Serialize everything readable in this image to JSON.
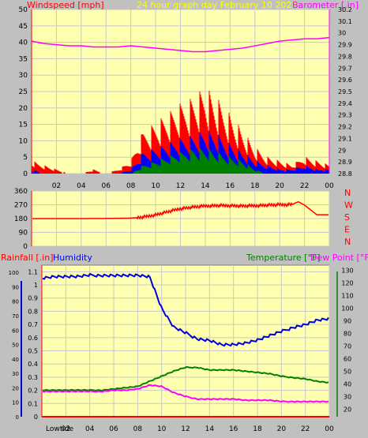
{
  "header": {
    "left": "Windspeed [mph]",
    "center": "24 hour graph day   February 10 2022",
    "right": "Barometer [.in]"
  },
  "rain_header": {
    "rain": "Rainfall [.in]",
    "humidity": "Humidity",
    "temperature": "Temperature [°F]",
    "dewpoint": "Dew Point [°F]"
  },
  "bottom_labels": {
    "lowtide": "Lowtide"
  },
  "colors": {
    "background": "#c0c0c0",
    "plot_bg": "#ffffb0",
    "grid": "#c8c8c8",
    "axis_red": "#ff0000",
    "gust": "#ff0000",
    "average": "#0000ff",
    "min": "#008000",
    "barometer": "#ff00ff",
    "humidity": "#0000dd",
    "temperature": "#008000",
    "dewpoint": "#ff00ff"
  },
  "chart_data": [
    {
      "type": "line",
      "name": "wind",
      "x_ticks": [
        "02",
        "04",
        "06",
        "08",
        "10",
        "12",
        "14",
        "16",
        "18",
        "20",
        "22",
        "00"
      ],
      "y_left_ticks": [
        "0",
        "5",
        "10",
        "15",
        "20",
        "25",
        "30",
        "35",
        "40",
        "45",
        "50"
      ],
      "y_right_ticks": [
        "28.8",
        "28.9",
        "29",
        "29.1",
        "29.2",
        "29.3",
        "29.4",
        "29.5",
        "29.6",
        "29.7",
        "29.8",
        "29.9",
        "30",
        "30.1",
        "30.2"
      ],
      "ylim_left": [
        0,
        50
      ],
      "ylim_right": [
        28.8,
        30.2
      ],
      "x_hours": [
        0,
        1,
        2,
        3,
        4,
        5,
        6,
        7,
        8,
        9,
        10,
        11,
        12,
        13,
        14,
        15,
        16,
        17,
        18,
        19,
        20,
        21,
        22,
        23,
        24
      ],
      "series": [
        {
          "name": "gust",
          "values": [
            3,
            2,
            1,
            0,
            0,
            1,
            0,
            1,
            3,
            10,
            12,
            14,
            16,
            18,
            20,
            17,
            14,
            10,
            6,
            4,
            3,
            2,
            4,
            3,
            2
          ]
        },
        {
          "name": "average",
          "values": [
            1,
            0,
            0,
            0,
            0,
            0,
            0,
            0,
            1,
            5,
            6,
            7,
            8,
            9,
            10,
            9,
            7,
            5,
            3,
            2,
            1,
            1,
            2,
            1,
            1
          ]
        },
        {
          "name": "min",
          "values": [
            0,
            0,
            0,
            0,
            0,
            0,
            0,
            0,
            0,
            2,
            3,
            4,
            5,
            6,
            6,
            5,
            4,
            3,
            1,
            0,
            0,
            0,
            0,
            0,
            0
          ]
        },
        {
          "name": "barometer",
          "values": [
            29.93,
            29.91,
            29.9,
            29.89,
            29.89,
            29.88,
            29.88,
            29.88,
            29.89,
            29.88,
            29.87,
            29.86,
            29.85,
            29.84,
            29.84,
            29.85,
            29.86,
            29.87,
            29.89,
            29.91,
            29.93,
            29.94,
            29.95,
            29.95,
            29.96
          ]
        }
      ]
    },
    {
      "type": "line",
      "name": "wind_direction",
      "y_left_ticks": [
        "0",
        "90",
        "180",
        "270",
        "360"
      ],
      "ylim": [
        0,
        360
      ],
      "compass": [
        "N",
        "W",
        "S",
        "E",
        "N"
      ],
      "x_hours": [
        0,
        2,
        4,
        6,
        7,
        8,
        9,
        10,
        11,
        12,
        13,
        14,
        15,
        16,
        17,
        18,
        19,
        20,
        21,
        21.5,
        22,
        23,
        24
      ],
      "values": [
        180,
        180,
        180,
        181,
        182,
        183,
        190,
        205,
        225,
        245,
        255,
        262,
        265,
        265,
        262,
        264,
        268,
        270,
        272,
        290,
        268,
        205,
        205
      ]
    },
    {
      "type": "line",
      "name": "rain_humidity_temperature",
      "x_ticks": [
        "02",
        "04",
        "06",
        "08",
        "10",
        "12",
        "14",
        "16",
        "18",
        "20",
        "22",
        "00"
      ],
      "y_left_ticks": [
        "0",
        "0.1",
        "0.2",
        "0.3",
        "0.4",
        "0.5",
        "0.6",
        "0.7",
        "0.8",
        "0.9",
        "1",
        "1.1"
      ],
      "y_left_humidity_ticks": [
        "0",
        "10",
        "20",
        "30",
        "40",
        "50",
        "60",
        "70",
        "80",
        "90",
        "100"
      ],
      "y_right_ticks": [
        "20",
        "30",
        "40",
        "50",
        "60",
        "70",
        "80",
        "90",
        "100",
        "110",
        "120",
        "130"
      ],
      "ylim_rain": [
        0,
        1.15
      ],
      "ylim_humidity": [
        0,
        105
      ],
      "ylim_temperature": [
        14,
        134
      ],
      "x_hours": [
        0,
        1,
        2,
        3,
        4,
        5,
        6,
        7,
        8,
        9,
        10,
        11,
        12,
        13,
        14,
        15,
        16,
        17,
        18,
        19,
        20,
        21,
        22,
        23,
        24
      ],
      "series": [
        {
          "name": "Humidity",
          "values": [
            96,
            97,
            97,
            97,
            98,
            98,
            98,
            98,
            98,
            97,
            75,
            62,
            58,
            54,
            53,
            50,
            50,
            51,
            53,
            56,
            59,
            62,
            64,
            67,
            68
          ]
        },
        {
          "name": "Temperature",
          "values": [
            35,
            35,
            35,
            35,
            35,
            35,
            36,
            37,
            38,
            42,
            46,
            50,
            53,
            53,
            51,
            51,
            51,
            50,
            49,
            48,
            46,
            45,
            44,
            42,
            41
          ]
        },
        {
          "name": "Dew Point",
          "values": [
            34,
            34,
            34,
            34,
            34,
            34,
            35,
            35,
            36,
            39,
            38,
            33,
            30,
            28,
            28,
            28,
            28,
            27,
            27,
            27,
            26,
            26,
            26,
            26,
            26
          ]
        },
        {
          "name": "Rainfall",
          "values": [
            0,
            0,
            0,
            0,
            0,
            0,
            0,
            0,
            0,
            0,
            0,
            0,
            0,
            0,
            0,
            0,
            0,
            0,
            0,
            0,
            0,
            0,
            0,
            0,
            0
          ]
        }
      ]
    }
  ]
}
